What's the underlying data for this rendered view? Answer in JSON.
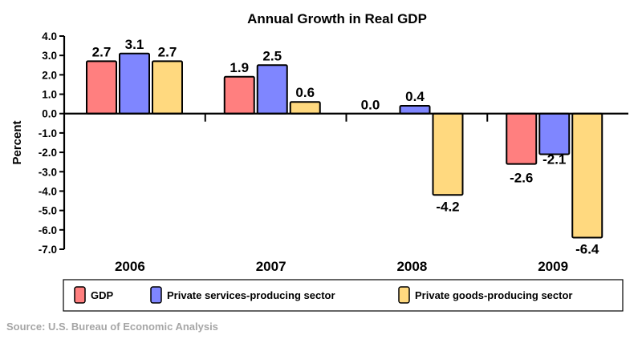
{
  "chart_data": {
    "type": "bar",
    "title": "Annual Growth in Real GDP",
    "xlabel": "",
    "ylabel": "Percent",
    "ylim": [
      -7.0,
      4.0
    ],
    "yticks": [
      "4.0",
      "3.0",
      "2.0",
      "1.0",
      "0.0",
      "-1.0",
      "-2.0",
      "-3.0",
      "-4.0",
      "-5.0",
      "-6.0",
      "-7.0"
    ],
    "ytick_values": [
      4,
      3,
      2,
      1,
      0,
      -1,
      -2,
      -3,
      -4,
      -5,
      -6,
      -7
    ],
    "categories": [
      "2006",
      "2007",
      "2008",
      "2009"
    ],
    "series": [
      {
        "name": "GDP",
        "color": "#ff7f7f",
        "values": [
          2.7,
          1.9,
          0.0,
          -2.6
        ],
        "labels": [
          "2.7",
          "1.9",
          "0.0",
          "-2.6"
        ]
      },
      {
        "name": "Private services-producing sector",
        "color": "#7f86ff",
        "values": [
          3.1,
          2.5,
          0.4,
          -2.1
        ],
        "labels": [
          "3.1",
          "2.5",
          "0.4",
          "-2.1"
        ]
      },
      {
        "name": "Private goods-producing sector",
        "color": "#ffd97f",
        "values": [
          2.7,
          0.6,
          -4.2,
          -6.4
        ],
        "labels": [
          "2.7",
          "0.6",
          "-4.2",
          "-6.4"
        ]
      }
    ],
    "grid": false,
    "legend_position": "bottom",
    "source": "Source: U.S. Bureau of Economic Analysis"
  }
}
